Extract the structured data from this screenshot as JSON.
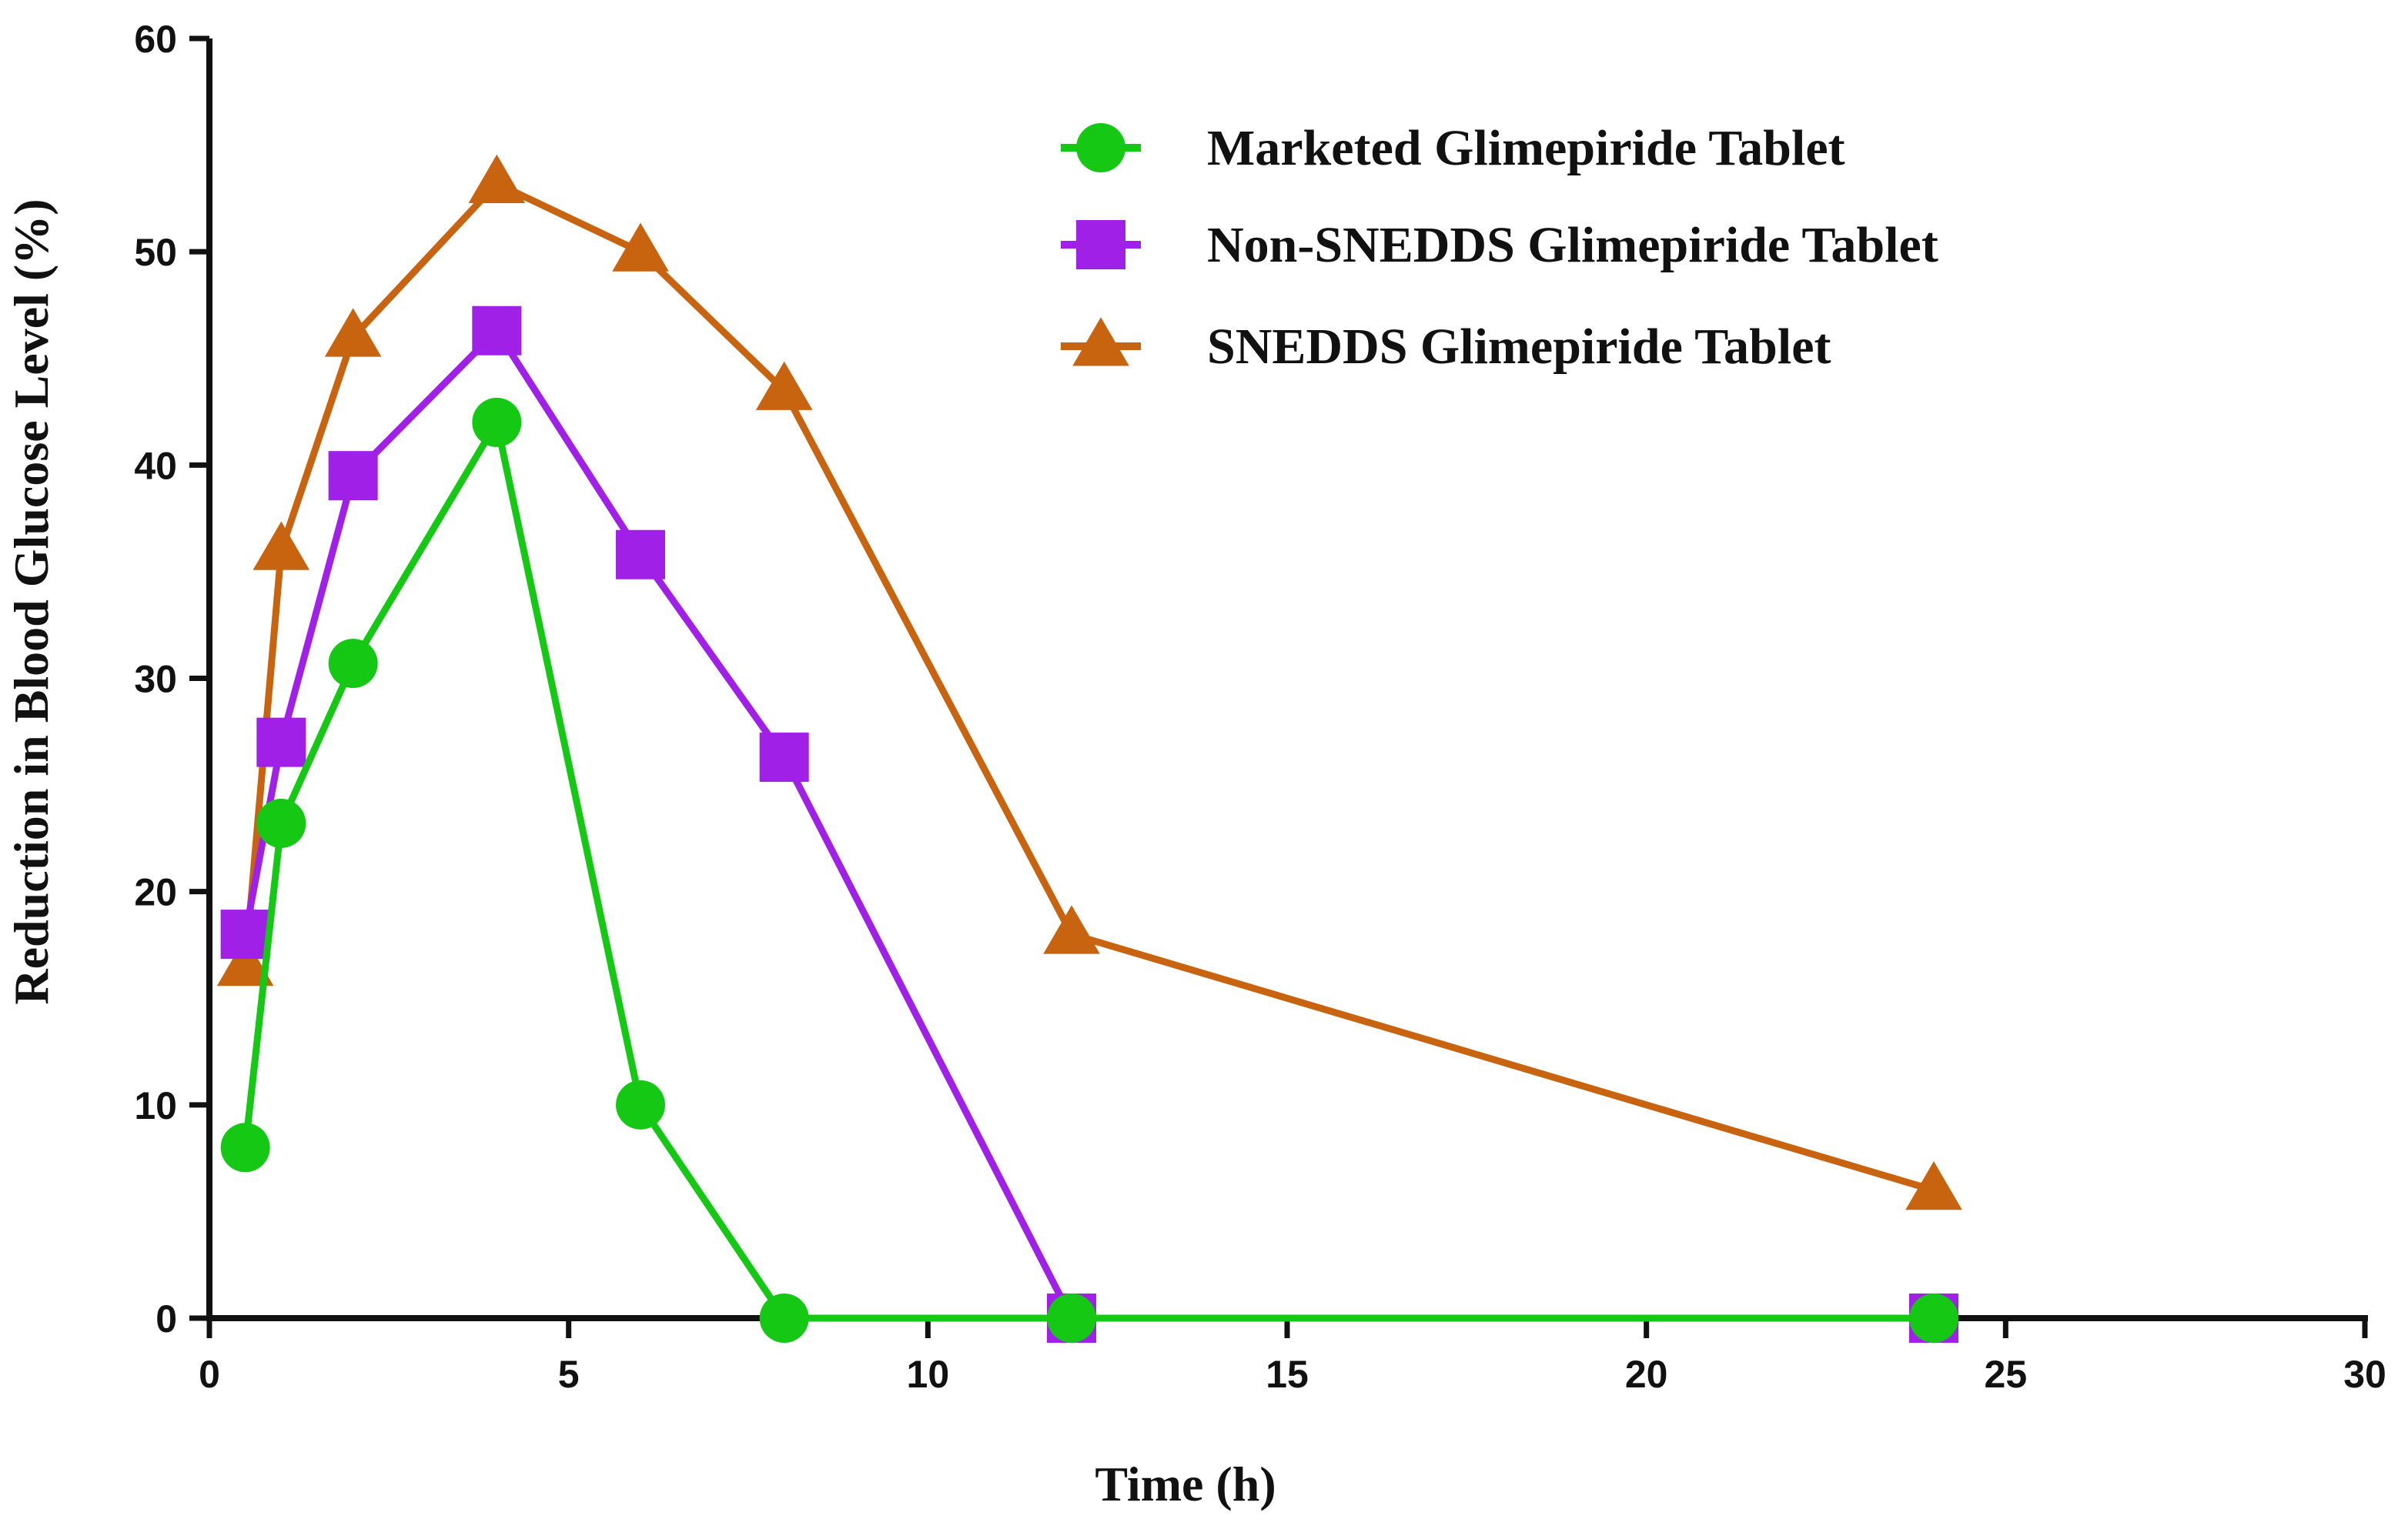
{
  "chart_data": {
    "type": "line",
    "title": "",
    "xlabel": "Time (h)",
    "ylabel": "Reduction in Blood Glucose Level (%)",
    "xlim": [
      0,
      30
    ],
    "ylim": [
      0,
      60
    ],
    "xticks": [
      0,
      5,
      10,
      15,
      20,
      25,
      30
    ],
    "yticks": [
      0,
      10,
      20,
      30,
      40,
      50,
      60
    ],
    "grid": false,
    "legend_position": "top-right",
    "series": [
      {
        "name": "Marketed Glimepiride Tablet",
        "color": "#14c814",
        "marker": "circle",
        "x": [
          0.5,
          1,
          2,
          4,
          6,
          8,
          12,
          24
        ],
        "y": [
          8,
          23.2,
          30.7,
          42,
          10,
          0,
          0,
          0
        ]
      },
      {
        "name": "Non-SNEDDS Glimepiride Tablet",
        "color": "#a020e8",
        "marker": "square",
        "x": [
          0.5,
          1,
          2,
          4,
          6,
          8,
          12,
          24
        ],
        "y": [
          18,
          27,
          39.5,
          46.3,
          35.8,
          26.3,
          0,
          0
        ]
      },
      {
        "name": "SNEDDS Glimepiride Tablet",
        "color": "#c86410",
        "marker": "triangle",
        "x": [
          0.5,
          1,
          2,
          4,
          6,
          8,
          12,
          24
        ],
        "y": [
          16.5,
          36,
          46,
          53.2,
          50,
          43.5,
          18,
          6
        ]
      }
    ]
  }
}
